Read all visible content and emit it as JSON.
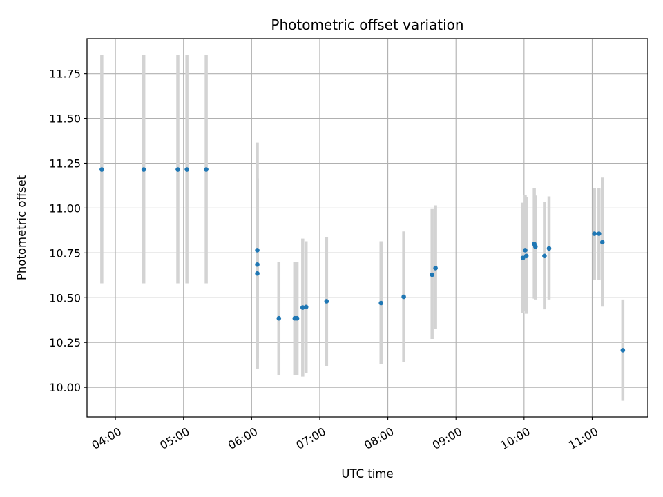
{
  "chart_data": {
    "type": "scatter",
    "title": "Photometric offset variation",
    "xlabel": "UTC time",
    "ylabel": "Photometric offset",
    "xlim": [
      "03:35",
      "11:49"
    ],
    "ylim": [
      9.835,
      11.945
    ],
    "x_ticks": [
      "04:00",
      "05:00",
      "06:00",
      "07:00",
      "08:00",
      "09:00",
      "10:00",
      "11:00"
    ],
    "y_ticks": [
      "10.00",
      "10.25",
      "10.50",
      "10.75",
      "11.00",
      "11.25",
      "11.50",
      "11.75"
    ],
    "grid": true,
    "legend": "none",
    "colors": {
      "points": "#1f77b4",
      "errorbars": "#d3d3d3",
      "grid": "#b0b0b0"
    },
    "points": [
      {
        "t": "03:48",
        "y": 11.215,
        "lo": 10.58,
        "hi": 11.855
      },
      {
        "t": "04:25",
        "y": 11.215,
        "lo": 10.58,
        "hi": 11.855
      },
      {
        "t": "04:55",
        "y": 11.215,
        "lo": 10.58,
        "hi": 11.855
      },
      {
        "t": "05:03",
        "y": 11.215,
        "lo": 10.58,
        "hi": 11.855
      },
      {
        "t": "05:20",
        "y": 11.215,
        "lo": 10.58,
        "hi": 11.855
      },
      {
        "t": "06:05",
        "y": 10.765,
        "lo": 10.165,
        "hi": 11.365
      },
      {
        "t": "06:05",
        "y": 10.685,
        "lo": 10.105,
        "hi": 11.165
      },
      {
        "t": "06:05",
        "y": 10.635,
        "lo": 10.105,
        "hi": 11.165
      },
      {
        "t": "06:24",
        "y": 10.385,
        "lo": 10.07,
        "hi": 10.7
      },
      {
        "t": "06:38",
        "y": 10.385,
        "lo": 10.07,
        "hi": 10.7
      },
      {
        "t": "06:40",
        "y": 10.385,
        "lo": 10.07,
        "hi": 10.7
      },
      {
        "t": "06:45",
        "y": 10.445,
        "lo": 10.06,
        "hi": 10.83
      },
      {
        "t": "06:48",
        "y": 10.448,
        "lo": 10.08,
        "hi": 10.815
      },
      {
        "t": "07:06",
        "y": 10.48,
        "lo": 10.12,
        "hi": 10.84
      },
      {
        "t": "07:54",
        "y": 10.47,
        "lo": 10.13,
        "hi": 10.815
      },
      {
        "t": "08:14",
        "y": 10.505,
        "lo": 10.14,
        "hi": 10.87
      },
      {
        "t": "08:39",
        "y": 10.628,
        "lo": 10.27,
        "hi": 10.995
      },
      {
        "t": "08:42",
        "y": 10.665,
        "lo": 10.325,
        "hi": 11.015
      },
      {
        "t": "09:59",
        "y": 10.722,
        "lo": 10.415,
        "hi": 11.03
      },
      {
        "t": "10:01",
        "y": 10.765,
        "lo": 10.425,
        "hi": 11.075
      },
      {
        "t": "10:02",
        "y": 10.733,
        "lo": 10.41,
        "hi": 11.06
      },
      {
        "t": "10:09",
        "y": 10.8,
        "lo": 10.495,
        "hi": 11.11
      },
      {
        "t": "10:10",
        "y": 10.785,
        "lo": 10.49,
        "hi": 11.07
      },
      {
        "t": "10:18",
        "y": 10.733,
        "lo": 10.435,
        "hi": 11.035
      },
      {
        "t": "10:22",
        "y": 10.775,
        "lo": 10.49,
        "hi": 11.065
      },
      {
        "t": "11:02",
        "y": 10.857,
        "lo": 10.6,
        "hi": 11.11
      },
      {
        "t": "11:06",
        "y": 10.857,
        "lo": 10.6,
        "hi": 11.11
      },
      {
        "t": "11:09",
        "y": 10.81,
        "lo": 10.45,
        "hi": 11.17
      },
      {
        "t": "11:27",
        "y": 10.207,
        "lo": 9.925,
        "hi": 10.49
      }
    ]
  }
}
